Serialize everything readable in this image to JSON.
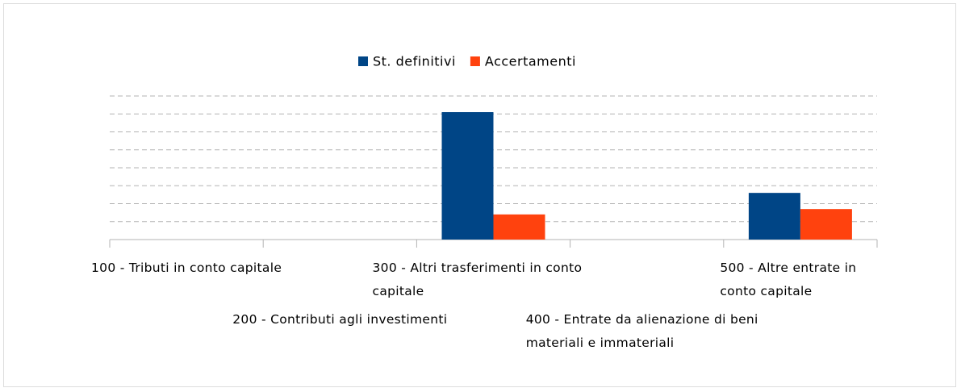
{
  "chart_data": {
    "type": "bar",
    "categories": [
      "100 - Tributi in conto capitale",
      "200 - Contributi agli investimenti",
      "300 - Altri trasferimenti in conto capitale",
      "400 - Entrate da alienazione di beni materiali e immateriali",
      "500 - Altre entrate in conto capitale"
    ],
    "series": [
      {
        "name": "St. definitivi",
        "color": "#004586",
        "values": [
          0,
          0,
          7.1,
          0,
          2.6
        ]
      },
      {
        "name": "Accertamenti",
        "color": "#ff420e",
        "values": [
          0,
          0,
          1.4,
          0,
          1.7
        ]
      }
    ],
    "ylim": [
      0,
      8
    ],
    "yticks": [
      0,
      1,
      2,
      3,
      4,
      5,
      6,
      7,
      8
    ],
    "grid": true,
    "legend": "top"
  }
}
